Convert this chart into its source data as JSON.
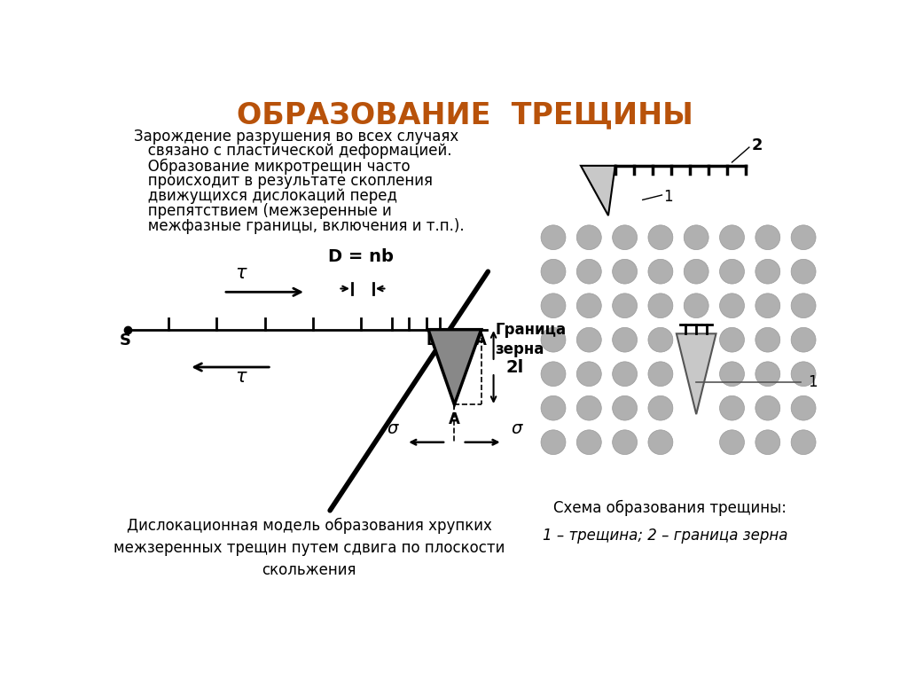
{
  "title": "ОБРАЗОВАНИЕ  ТРЕЩИНЫ",
  "title_color": "#B8520A",
  "title_fontsize": 24,
  "bg_color": "#FFFFFF",
  "left_text_lines": [
    "Зарождение разрушения во всех случаях",
    "   связано с пластической деформацией.",
    "   Образование микротрещин часто",
    "   происходит в результате скопления",
    "   движущихся дислокаций перед",
    "   препятствием (межзеренные и",
    "   межфазные границы, включения и т.п.)."
  ],
  "bottom_left_text": "Дислокационная модель образования хрупких\nмежзеренных трещин путем сдвига по плоскости\nскольжения",
  "bottom_right_text1": "Схема образования трещины:",
  "bottom_right_text2": "1 – трещина; 2 – граница зерна",
  "grain_color": "#B0B0B0",
  "crack_fill_color": "#C8C8C8"
}
